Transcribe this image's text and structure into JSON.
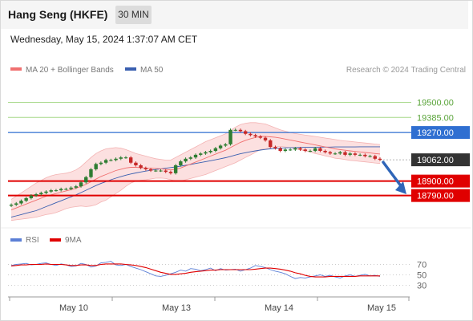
{
  "header": {
    "title": "Hang Seng (HKFE)",
    "timeframe": "30 MIN",
    "datetime": "Wednesday, May 15, 2024 1:37:07 AM CET"
  },
  "legend": {
    "ma20_label": "MA 20 + Bollinger Bands",
    "ma50_label": "MA 50",
    "source": "Research © 2024 Trading Central",
    "rsi_label": "RSI",
    "rsi_ma_label": "9MA"
  },
  "colors": {
    "up": "#2e7d32",
    "down": "#c62828",
    "ma20": "#f07070",
    "band": "#fbd6d6",
    "ma50": "#3a5fb0",
    "resistance": "#a7d98a",
    "pivot": "#2f6fd1",
    "support": "#e00000",
    "price": "#333333",
    "rsi": "#5b7fd6",
    "rsi_ma": "#e00000",
    "arrow": "#2f65b8"
  },
  "chart_data": [
    {
      "type": "line",
      "panel": "price",
      "xlabels": [
        "May 10",
        "May 13",
        "May 14",
        "May 15"
      ],
      "ylim": [
        18580,
        19680
      ],
      "levels": [
        {
          "label": "19500.00",
          "value": 19500,
          "kind": "resistance"
        },
        {
          "label": "19385.00",
          "value": 19385,
          "kind": "resistance"
        },
        {
          "label": "19270.00",
          "value": 19270,
          "kind": "pivot"
        },
        {
          "label": "19062.00",
          "value": 19062,
          "kind": "price"
        },
        {
          "label": "18900.00",
          "value": 18900,
          "kind": "support"
        },
        {
          "label": "18790.00",
          "value": 18790,
          "kind": "support"
        }
      ],
      "series": [
        {
          "name": "Hang Seng (HKFE)",
          "kind": "close",
          "values": [
            18720,
            18730,
            18750,
            18770,
            18790,
            18800,
            18810,
            18820,
            18830,
            18830,
            18840,
            18840,
            18850,
            18860,
            18890,
            18930,
            18990,
            19030,
            19040,
            19060,
            19060,
            19070,
            19080,
            19080,
            19040,
            19020,
            19000,
            18990,
            18980,
            18980,
            18980,
            18970,
            18960,
            19020,
            19050,
            19070,
            19080,
            19100,
            19110,
            19120,
            19130,
            19150,
            19170,
            19180,
            19290,
            19290,
            19280,
            19260,
            19250,
            19240,
            19230,
            19210,
            19160,
            19150,
            19130,
            19140,
            19140,
            19150,
            19140,
            19130,
            19130,
            19150,
            19130,
            19120,
            19110,
            19110,
            19120,
            19100,
            19110,
            19100,
            19100,
            19090,
            19090,
            19070,
            19062
          ]
        },
        {
          "name": "MA 20",
          "kind": "ma20",
          "values": [
            18680,
            18695,
            18710,
            18725,
            18740,
            18755,
            18770,
            18785,
            18795,
            18805,
            18815,
            18825,
            18835,
            18845,
            18860,
            18875,
            18895,
            18915,
            18935,
            18950,
            18965,
            18980,
            18990,
            19000,
            19005,
            19005,
            19003,
            19000,
            18998,
            18996,
            18994,
            18990,
            18985,
            18990,
            19000,
            19015,
            19030,
            19045,
            19060,
            19075,
            19090,
            19105,
            19120,
            19135,
            19155,
            19175,
            19195,
            19210,
            19222,
            19232,
            19240,
            19240,
            19237,
            19233,
            19227,
            19220,
            19212,
            19205,
            19197,
            19190,
            19183,
            19175,
            19168,
            19160,
            19153,
            19145,
            19140,
            19135,
            19130,
            19126,
            19122,
            19118,
            19114,
            19110,
            19106
          ]
        },
        {
          "name": "Upper band",
          "kind": "band_upper",
          "values": [
            18760,
            18785,
            18810,
            18835,
            18860,
            18885,
            18905,
            18925,
            18940,
            18950,
            18955,
            18960,
            18970,
            18985,
            19010,
            19045,
            19080,
            19110,
            19130,
            19145,
            19150,
            19155,
            19150,
            19140,
            19125,
            19110,
            19100,
            19090,
            19080,
            19070,
            19065,
            19060,
            19060,
            19080,
            19100,
            19120,
            19140,
            19160,
            19180,
            19200,
            19215,
            19230,
            19245,
            19260,
            19285,
            19310,
            19330,
            19340,
            19345,
            19345,
            19340,
            19335,
            19320,
            19305,
            19290,
            19280,
            19270,
            19262,
            19256,
            19250,
            19245,
            19240,
            19234,
            19228,
            19222,
            19216,
            19210,
            19206,
            19202,
            19198,
            19194,
            19190,
            19186,
            19182,
            19178
          ]
        },
        {
          "name": "Lower band",
          "kind": "band_lower",
          "values": [
            18600,
            18605,
            18610,
            18615,
            18620,
            18625,
            18635,
            18645,
            18650,
            18660,
            18675,
            18690,
            18700,
            18705,
            18710,
            18705,
            18710,
            18720,
            18740,
            18755,
            18780,
            18805,
            18830,
            18860,
            18885,
            18900,
            18906,
            18910,
            18916,
            18922,
            18923,
            18920,
            18910,
            18900,
            18900,
            18910,
            18920,
            18930,
            18940,
            18950,
            18965,
            18980,
            18995,
            19010,
            19025,
            19040,
            19060,
            19080,
            19099,
            19119,
            19140,
            19145,
            19154,
            19161,
            19164,
            19160,
            19154,
            19148,
            19138,
            19130,
            19121,
            19110,
            19102,
            19092,
            19084,
            19074,
            19070,
            19064,
            19058,
            19054,
            19050,
            19046,
            19042,
            19038,
            19034
          ]
        },
        {
          "name": "MA 50",
          "kind": "ma50",
          "values": [
            18625,
            18635,
            18645,
            18655,
            18665,
            18675,
            18690,
            18705,
            18720,
            18735,
            18750,
            18765,
            18780,
            18795,
            18812,
            18830,
            18848,
            18866,
            18882,
            18896,
            18910,
            18922,
            18934,
            18945,
            18954,
            18962,
            18969,
            18976,
            18982,
            18988,
            18993,
            18998,
            19003,
            19008,
            19014,
            19020,
            19027,
            19034,
            19041,
            19048,
            19055,
            19062,
            19070,
            19078,
            19088,
            19098,
            19108,
            19116,
            19123,
            19130,
            19136,
            19141,
            19145,
            19148,
            19151,
            19153,
            19154,
            19155,
            19156,
            19157,
            19158,
            19158,
            19159,
            19159,
            19159,
            19160,
            19160,
            19160,
            19160,
            19160,
            19161,
            19161,
            19161,
            19161,
            19161
          ]
        }
      ]
    },
    {
      "type": "line",
      "panel": "rsi",
      "ylim": [
        0,
        100
      ],
      "yticks": [
        70,
        50,
        30
      ],
      "ytick_labels": [
        "70",
        "50",
        "30"
      ],
      "series": [
        {
          "name": "RSI",
          "values": [
            68,
            70,
            71,
            72,
            69,
            70,
            72,
            73,
            70,
            68,
            71,
            69,
            66,
            67,
            72,
            70,
            65,
            67,
            73,
            74,
            76,
            69,
            68,
            70,
            66,
            63,
            60,
            56,
            52,
            48,
            47,
            49,
            52,
            55,
            59,
            57,
            62,
            61,
            58,
            60,
            63,
            58,
            62,
            59,
            60,
            61,
            57,
            60,
            63,
            68,
            66,
            64,
            60,
            57,
            55,
            52,
            47,
            43,
            45,
            44,
            46,
            48,
            50,
            47,
            49,
            46,
            44,
            48,
            50,
            47,
            49,
            51,
            48,
            49,
            47
          ]
        },
        {
          "name": "9MA",
          "values": [
            67,
            68,
            69,
            69,
            70,
            70,
            70,
            71,
            70,
            70,
            70,
            69,
            68,
            68,
            69,
            69,
            68,
            68,
            70,
            71,
            71,
            71,
            71,
            70,
            69,
            68,
            66,
            64,
            61,
            58,
            55,
            53,
            51,
            51,
            52,
            53,
            55,
            56,
            57,
            58,
            59,
            59,
            60,
            60,
            60,
            60,
            60,
            60,
            60,
            61,
            62,
            63,
            63,
            62,
            61,
            59,
            57,
            54,
            52,
            49,
            47,
            46,
            46,
            46,
            47,
            47,
            47,
            47,
            47,
            47,
            48,
            48,
            48,
            48,
            48
          ]
        }
      ]
    }
  ]
}
